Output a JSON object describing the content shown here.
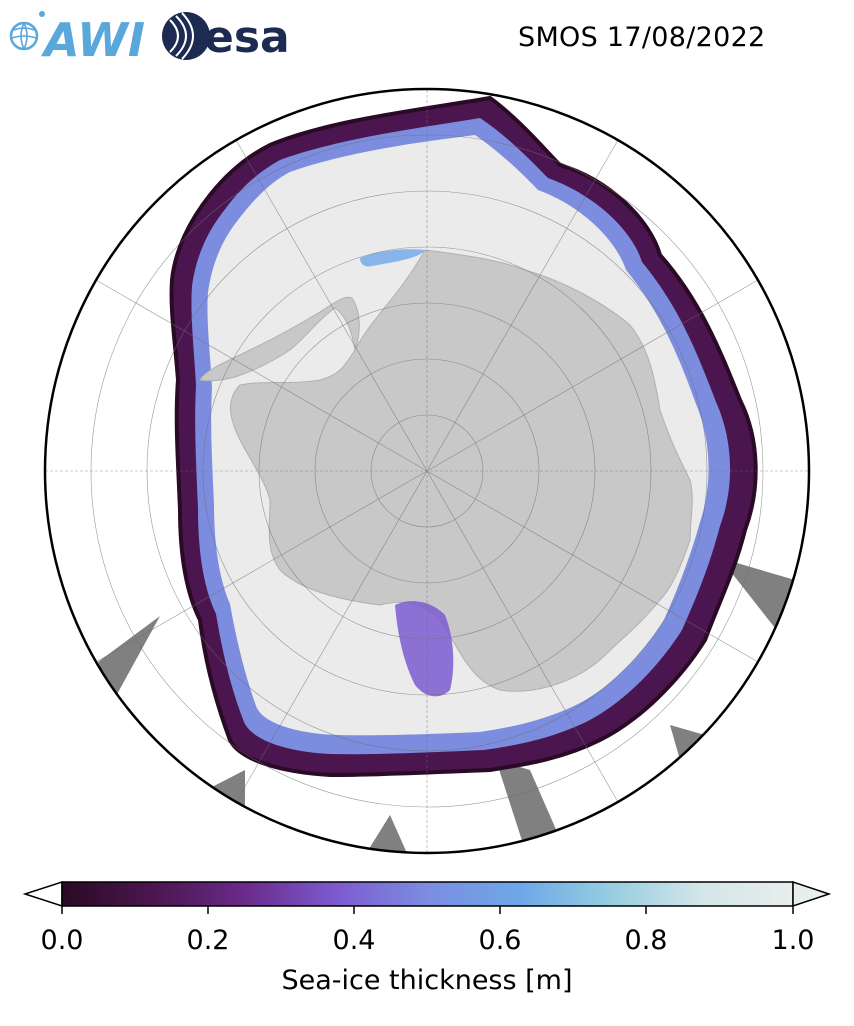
{
  "header": {
    "logo_left": "AWI",
    "logo_right": "esa",
    "title": "SMOS 17/08/2022"
  },
  "colors": {
    "land": "#c8c8c8",
    "thick_ice": "#ebebeb",
    "no_data": "#808080",
    "border": "#000000",
    "awi_blue": "#5aa7dc",
    "esa_navy": "#1d2b53"
  },
  "colorbar": {
    "min": 0.0,
    "max": 1.0,
    "extend": "both",
    "colormap": [
      "#2a0a24",
      "#4b1650",
      "#6a2a8a",
      "#7d5ad0",
      "#7c8de0",
      "#6ea7e8",
      "#96cde0",
      "#d3e6e8",
      "#e8eded"
    ],
    "ticks": [
      "0.0",
      "0.2",
      "0.4",
      "0.6",
      "0.8",
      "1.0"
    ],
    "label": "Sea-ice thickness [m]"
  },
  "map": {
    "projection": "south polar stereographic",
    "gridlines": true
  }
}
